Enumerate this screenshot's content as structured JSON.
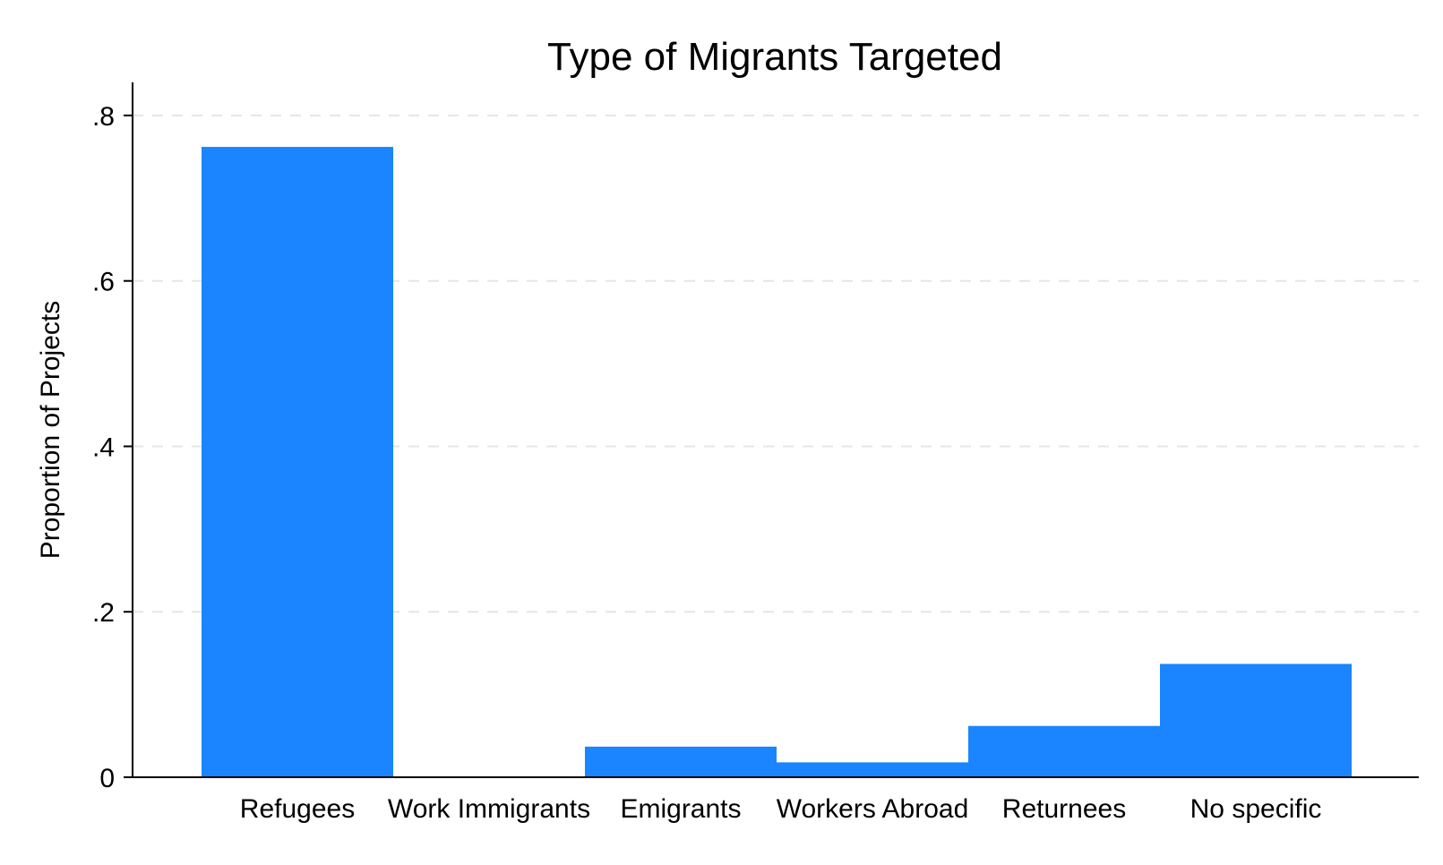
{
  "chart_data": {
    "type": "bar",
    "title": "Type of Migrants Targeted",
    "xlabel": "",
    "ylabel": "Proportion of Projects",
    "categories": [
      "Refugees",
      "Work Immigrants",
      "Emigrants",
      "Workers Abroad",
      "Returnees",
      "No specific"
    ],
    "values": [
      0.762,
      0.0,
      0.037,
      0.018,
      0.062,
      0.137
    ],
    "ylim": [
      0,
      0.84
    ],
    "yticks": [
      0,
      0.2,
      0.4,
      0.6,
      0.8
    ],
    "ytick_labels": [
      "0",
      ".2",
      ".4",
      ".6",
      ".8"
    ],
    "grid": true,
    "colors": {
      "bar": "#1a85ff",
      "grid": "#e6e6e6",
      "axis": "#000000"
    }
  }
}
